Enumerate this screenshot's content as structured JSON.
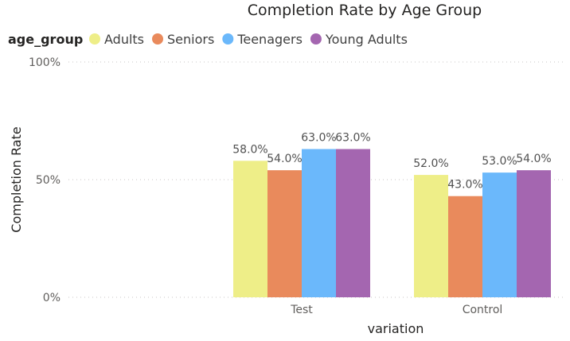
{
  "chart_data": {
    "type": "bar",
    "title": "Completion Rate by Age Group",
    "legend_title": "age_group",
    "legend_position": "top-left",
    "xlabel": "variation",
    "ylabel": "Completion Rate",
    "categories": [
      "Test",
      "Control"
    ],
    "series": [
      {
        "name": "Adults",
        "color": "#eeee88",
        "values": [
          58.0,
          52.0
        ],
        "labels": [
          "58.0%",
          "52.0%"
        ]
      },
      {
        "name": "Seniors",
        "color": "#e98a5c",
        "values": [
          54.0,
          43.0
        ],
        "labels": [
          "54.0%",
          "43.0%"
        ]
      },
      {
        "name": "Teenagers",
        "color": "#6bb8fb",
        "values": [
          63.0,
          53.0
        ],
        "labels": [
          "63.0%",
          "53.0%"
        ]
      },
      {
        "name": "Young Adults",
        "color": "#a466b0",
        "values": [
          63.0,
          54.0
        ],
        "labels": [
          "63.0%",
          "54.0%"
        ]
      }
    ],
    "ylim": [
      0,
      100
    ],
    "y_ticks": [
      {
        "value": 0,
        "label": "0%"
      },
      {
        "value": 50,
        "label": "50%"
      },
      {
        "value": 100,
        "label": "100%"
      }
    ],
    "grid": true
  }
}
